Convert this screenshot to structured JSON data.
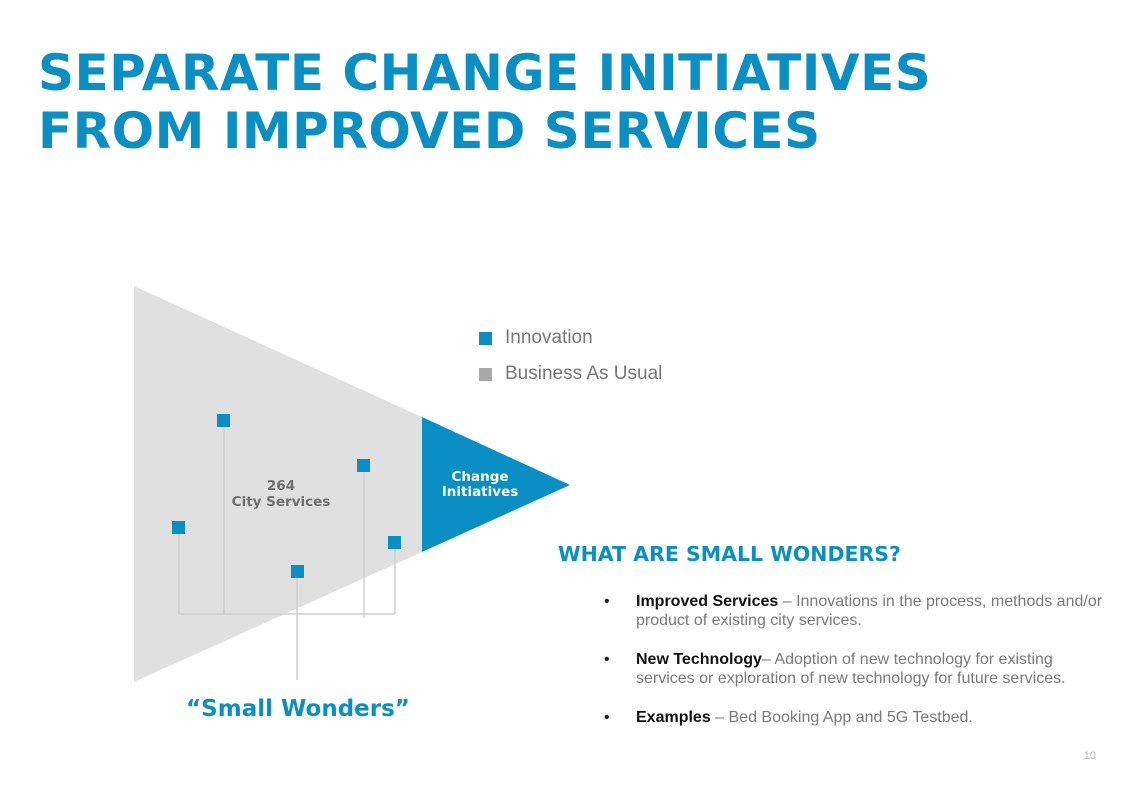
{
  "slide": {
    "title_line1": "SEPARATE CHANGE INITIATIVES",
    "title_line2": "FROM IMPROVED SERVICES",
    "page_number": "10"
  },
  "colors": {
    "accent": "#0a8fc4",
    "gray_triangle": "#e0e0e0",
    "gray_legend": "#a9a9a9",
    "connector": "#cfcfcf"
  },
  "legend": [
    {
      "label": "Innovation",
      "color": "#0a8fc4"
    },
    {
      "label": "Business As Usual",
      "color": "#a9a9a9"
    }
  ],
  "diagram": {
    "big_triangle": {
      "count": "264",
      "label": "City Services"
    },
    "small_triangle": {
      "line1": "Change",
      "line2": "Initiatives"
    },
    "caption": "“Small Wonders”"
  },
  "small_wonders": {
    "heading": "WHAT ARE SMALL WONDERS?",
    "bullets": [
      {
        "term": "Improved Services",
        "text": " – Innovations in the process, methods and/or product of existing city services."
      },
      {
        "term": "New Technology",
        "text": "– Adoption of new technology for existing services or exploration of new technology for future services."
      },
      {
        "term": "Examples",
        "text": " – Bed Booking App and 5G Testbed."
      }
    ]
  }
}
